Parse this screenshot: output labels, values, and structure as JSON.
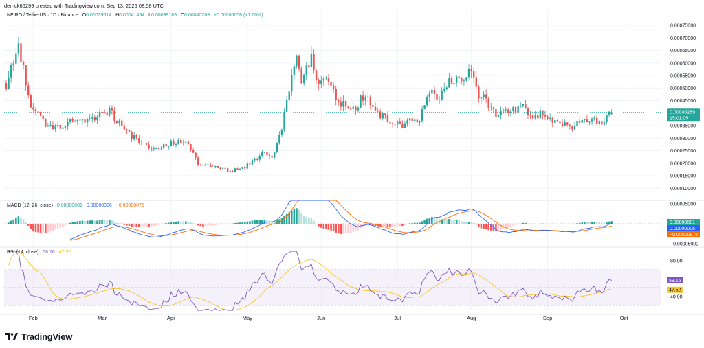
{
  "header": {
    "attribution": "derrick66299 created with TradingView.com, Sep 13, 2025 08:58 UTC"
  },
  "legend": {
    "symbol": "NEIRO / TetherUS · 1D · Binance",
    "o_label": "O",
    "o": "0.00039614",
    "h_label": "H",
    "h": "0.00041494",
    "l_label": "L",
    "l": "0.00039189",
    "c_label": "C",
    "c": "0.00040269",
    "change": "+0.00000658 (+1.66%)"
  },
  "colors": {
    "up": "#26a69a",
    "down": "#ef5350",
    "macd_line": "#2962ff",
    "signal_line": "#ff6d00",
    "rsi_line": "#7e57c2",
    "rsi_ma": "#f7c531",
    "rsi_band": "#ede7f6",
    "grid": "#f0f3fa",
    "axis_text": "#131722"
  },
  "price_axis": {
    "ticks": [
      "0.00075000",
      "0.00070000",
      "0.00065000",
      "0.00060000",
      "0.00055000",
      "0.00050000",
      "0.00045000",
      "0.00035000",
      "0.00030000",
      "0.00025000",
      "0.00020000",
      "0.00015000",
      "0.00010000"
    ],
    "tick_values": [
      0.00075,
      0.0007,
      0.00065,
      0.0006,
      0.00055,
      0.0005,
      0.00045,
      0.00035,
      0.0003,
      0.00025,
      0.0002,
      0.00015,
      0.0001
    ],
    "last_price_label": "0.00040269",
    "countdown": "15:01:05"
  },
  "macd": {
    "label": "MACD (12, 26, close)",
    "hist_value": "0.00000881",
    "macd_value": "0.00000006",
    "signal_value": "−0.00000875",
    "axis_ticks": [
      "0.00005000",
      "−0.00005000"
    ],
    "tick_values": [
      5e-05,
      -5e-05
    ]
  },
  "rsi": {
    "label": "RSI (14, close)",
    "value": "58.16",
    "ma_value": "47.52",
    "axis_ticks": [
      "80.00",
      "40.00"
    ],
    "tick_values": [
      80,
      40
    ]
  },
  "time_axis": {
    "labels": [
      "Feb",
      "Mar",
      "Apr",
      "May",
      "Jun",
      "Jul",
      "Aug",
      "Sep",
      "Oct"
    ]
  },
  "branding": {
    "name": "TradingView"
  },
  "chart_data": {
    "type": "candlestick",
    "series_shape": "daily OHLC",
    "y_scale": "linear",
    "x_range": [
      "2025-01-21",
      "2025-09-13"
    ],
    "ylim": [
      0.0001,
      0.00078
    ],
    "price_path": [
      [
        0,
        0.00052
      ],
      [
        5,
        0.00066
      ],
      [
        10,
        0.00043
      ],
      [
        16,
        0.00036
      ],
      [
        21,
        0.00034
      ],
      [
        26,
        0.00038
      ],
      [
        34,
        0.00037
      ],
      [
        42,
        0.00041
      ],
      [
        46,
        0.00036
      ],
      [
        52,
        0.0003
      ],
      [
        58,
        0.00026
      ],
      [
        64,
        0.00027
      ],
      [
        70,
        0.00029
      ],
      [
        74,
        0.00027
      ],
      [
        78,
        0.0002
      ],
      [
        86,
        0.00018
      ],
      [
        92,
        0.00017
      ],
      [
        98,
        0.00019
      ],
      [
        104,
        0.00024
      ],
      [
        108,
        0.00022
      ],
      [
        112,
        0.00035
      ],
      [
        116,
        0.00056
      ],
      [
        118,
        0.00062
      ],
      [
        120,
        0.00053
      ],
      [
        124,
        0.00062
      ],
      [
        126,
        0.00054
      ],
      [
        130,
        0.00054
      ],
      [
        134,
        0.00046
      ],
      [
        140,
        0.00041
      ],
      [
        146,
        0.00047
      ],
      [
        150,
        0.00041
      ],
      [
        154,
        0.00038
      ],
      [
        160,
        0.00035
      ],
      [
        164,
        0.00037
      ],
      [
        168,
        0.00038
      ],
      [
        172,
        0.00048
      ],
      [
        176,
        0.00047
      ],
      [
        180,
        0.00054
      ],
      [
        184,
        0.00052
      ],
      [
        188,
        0.00058
      ],
      [
        192,
        0.00048
      ],
      [
        196,
        0.00043
      ],
      [
        200,
        0.00039
      ],
      [
        204,
        0.00041
      ],
      [
        210,
        0.00042
      ],
      [
        214,
        0.00039
      ],
      [
        218,
        0.0004
      ],
      [
        222,
        0.00036
      ],
      [
        226,
        0.00035
      ],
      [
        230,
        0.00035
      ],
      [
        234,
        0.00036
      ],
      [
        238,
        0.00037
      ],
      [
        242,
        0.00037
      ],
      [
        246,
        0.0004
      ]
    ]
  }
}
